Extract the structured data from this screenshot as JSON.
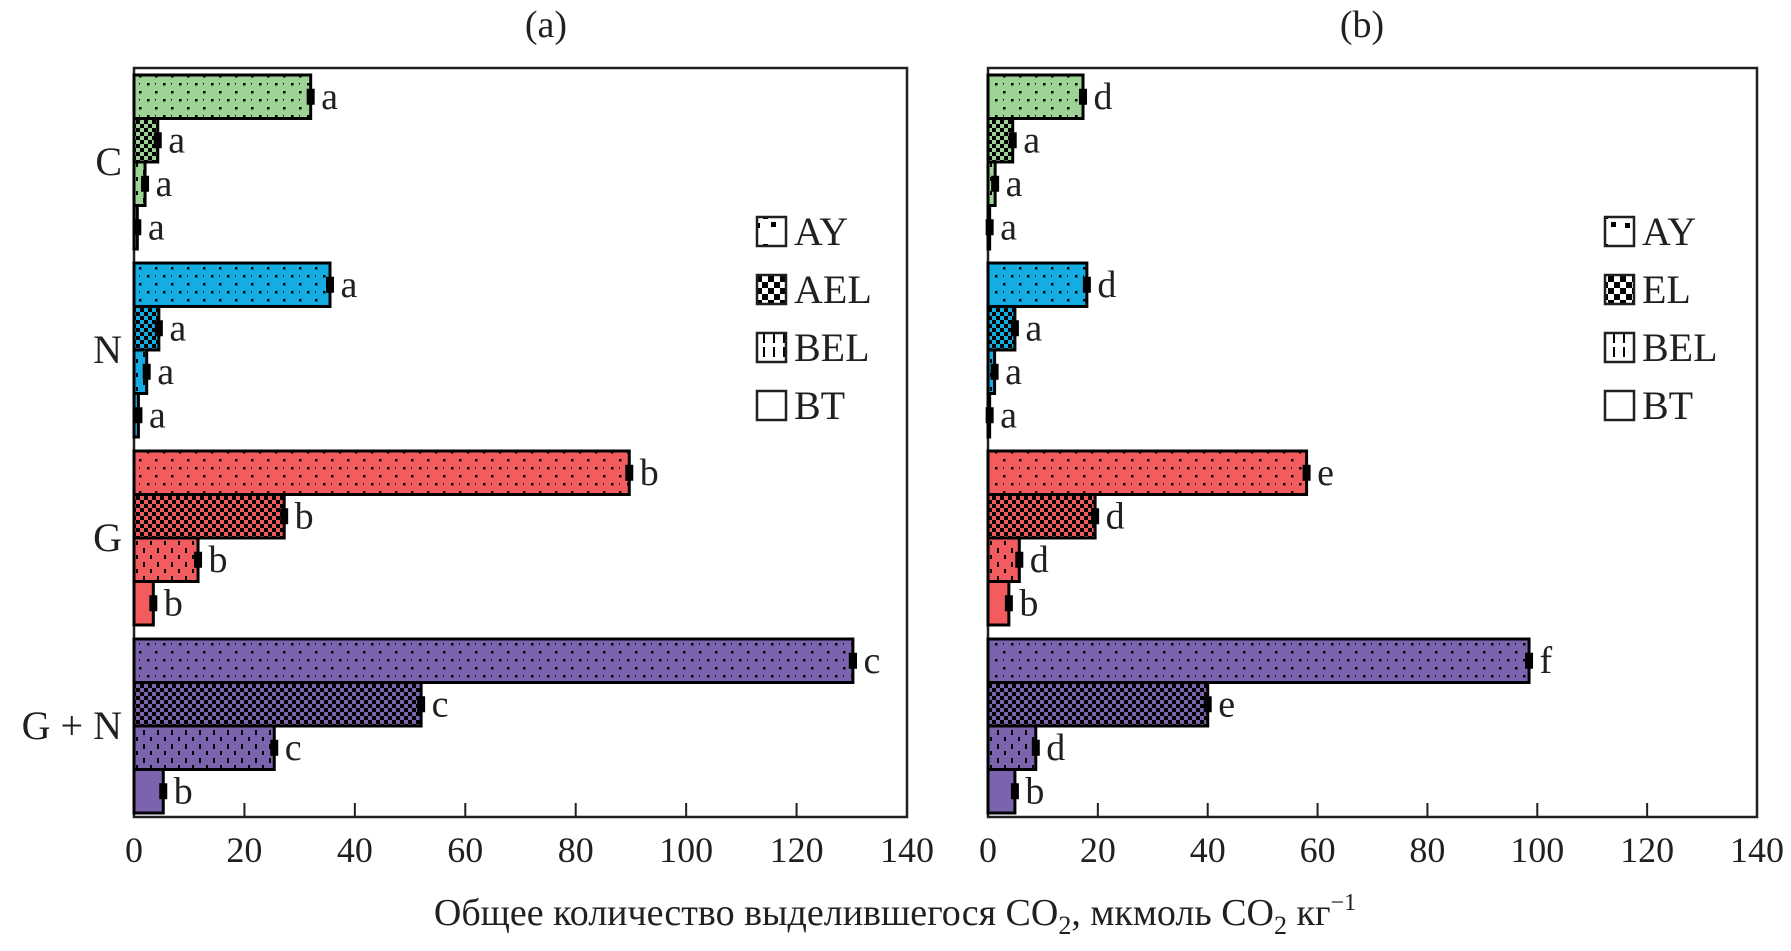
{
  "chart_data": [
    {
      "type": "bar",
      "orientation": "horizontal",
      "panel_label": "(a)",
      "categories": [
        "C",
        "N",
        "G",
        "G + N"
      ],
      "series": [
        {
          "name": "AY",
          "pattern": "dots",
          "values": [
            32,
            35.5,
            89.7,
            130.2
          ],
          "sig_letters": [
            "a",
            "a",
            "b",
            "c"
          ]
        },
        {
          "name": "AEL",
          "pattern": "checker",
          "values": [
            4.3,
            4.5,
            27.2,
            52
          ],
          "sig_letters": [
            "a",
            "a",
            "b",
            "c"
          ]
        },
        {
          "name": "BEL",
          "pattern": "dashes",
          "values": [
            2.0,
            2.3,
            11.6,
            25.4
          ],
          "sig_letters": [
            "a",
            "a",
            "b",
            "c"
          ]
        },
        {
          "name": "BT",
          "pattern": "solid",
          "values": [
            0.6,
            0.8,
            3.5,
            5.3
          ],
          "sig_letters": [
            "a",
            "a",
            "b",
            "b"
          ]
        }
      ],
      "xlim": [
        0,
        140
      ],
      "xticks": [
        0,
        20,
        40,
        60,
        80,
        100,
        120,
        140
      ],
      "legend_position": "right",
      "grid": false
    },
    {
      "type": "bar",
      "orientation": "horizontal",
      "panel_label": "(b)",
      "categories": [
        "C",
        "N",
        "G",
        "G + N"
      ],
      "series": [
        {
          "name": "AY",
          "pattern": "dots",
          "values": [
            17.3,
            18,
            58,
            98.5
          ],
          "sig_letters": [
            "d",
            "d",
            "e",
            "f"
          ]
        },
        {
          "name": "EL",
          "pattern": "checker",
          "values": [
            4.5,
            4.9,
            19.5,
            40
          ],
          "sig_letters": [
            "a",
            "a",
            "d",
            "e"
          ]
        },
        {
          "name": "BEL",
          "pattern": "dashes",
          "values": [
            1.3,
            1.2,
            5.7,
            8.7
          ],
          "sig_letters": [
            "a",
            "a",
            "d",
            "d"
          ]
        },
        {
          "name": "BT",
          "pattern": "solid",
          "values": [
            0.3,
            0.3,
            3.8,
            4.9
          ],
          "sig_letters": [
            "a",
            "a",
            "b",
            "b"
          ]
        }
      ],
      "xlim": [
        0,
        140
      ],
      "xticks": [
        0,
        20,
        40,
        60,
        80,
        100,
        120,
        140
      ],
      "legend_position": "right",
      "grid": false
    }
  ],
  "group_colors": {
    "C": "#9dd495",
    "N": "#13ade3",
    "G": "#f25c5e",
    "G + N": "#7b63ae"
  },
  "xlabel": {
    "main": "Общее количество выделившегося CO",
    "sub1": "2",
    "mid": ", мкмоль CO",
    "sub2": "2",
    "unit": " кг",
    "sup": "−1"
  }
}
